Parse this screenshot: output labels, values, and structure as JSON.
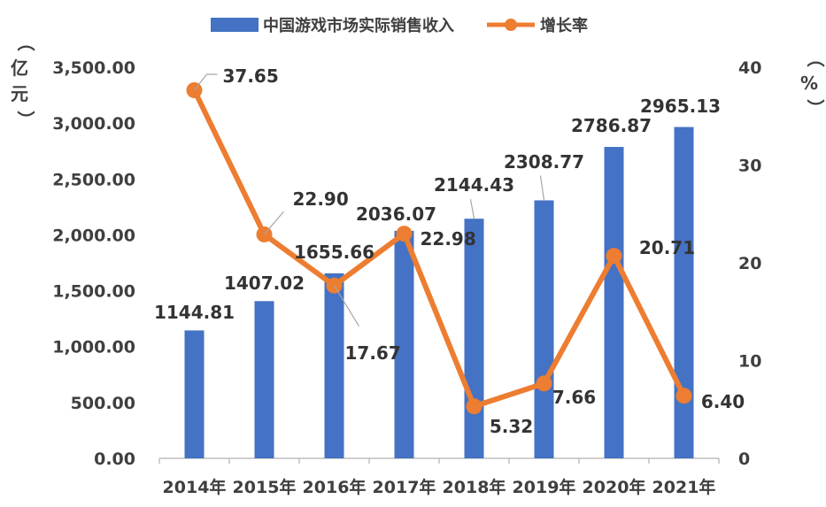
{
  "chart_data": {
    "type": "bar",
    "categories": [
      "2014年",
      "2015年",
      "2016年",
      "2017年",
      "2018年",
      "2019年",
      "2020年",
      "2021年"
    ],
    "series": [
      {
        "name": "中国游戏市场实际销售收入",
        "type": "bar",
        "axis": "left",
        "color": "#4472C4",
        "values": [
          1144.81,
          1407.02,
          1655.66,
          2036.07,
          2144.43,
          2308.77,
          2786.87,
          2965.13
        ],
        "labels": [
          "1144.81",
          "1407.02",
          "1655.66",
          "2036.07",
          "2144.43",
          "2308.77",
          "2786.87",
          "2965.13"
        ]
      },
      {
        "name": "增长率",
        "type": "line",
        "axis": "right",
        "color": "#ED7D31",
        "values": [
          37.65,
          22.9,
          17.67,
          22.98,
          5.32,
          7.66,
          20.71,
          6.4
        ],
        "labels": [
          "37.65",
          "22.90",
          "17.67",
          "22.98",
          "5.32",
          "7.66",
          "20.71",
          "6.40"
        ]
      }
    ],
    "y_left": {
      "label": "（亿元）",
      "ylim": [
        0,
        3500
      ],
      "ticks": [
        0,
        500,
        1000,
        1500,
        2000,
        2500,
        3000,
        3500
      ],
      "tick_labels": [
        "0.00",
        "500.00",
        "1,000.00",
        "1,500.00",
        "2,000.00",
        "2,500.00",
        "3,000.00",
        "3,500.00"
      ]
    },
    "y_right": {
      "label": "（%）",
      "ylim": [
        0,
        40
      ],
      "ticks": [
        0,
        10,
        20,
        30,
        40
      ],
      "tick_labels": [
        "0",
        "10",
        "20",
        "30",
        "40"
      ]
    },
    "grid": false,
    "legend_position": "top"
  }
}
